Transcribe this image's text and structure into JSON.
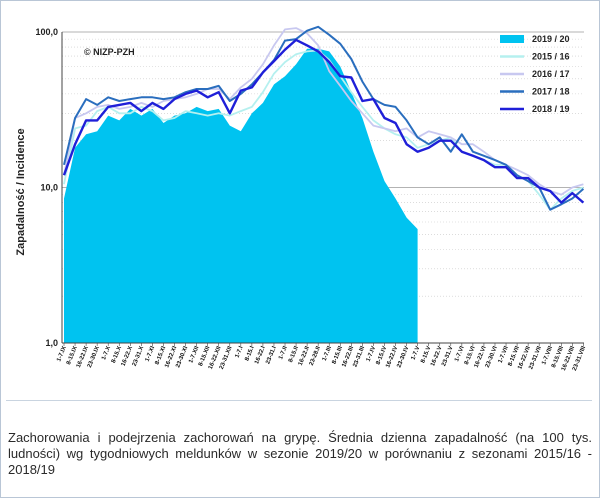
{
  "chart_data": {
    "type": "area",
    "y_scale": "log",
    "ylim": [
      1,
      100
    ],
    "yticks": [
      "1,0",
      "10,0",
      "100,0"
    ],
    "ylabel": "Zapadalność  /  Incidence",
    "copyright": "© NIZP-PZH",
    "categories": [
      "1-7.IX",
      "8-15.IX",
      "16-22.IX",
      "23-30.IX",
      "1-7.X",
      "8-15.X",
      "16-22.X",
      "23-31.X",
      "1-7.XI",
      "8-15.XI",
      "16-22.XI",
      "23-30.XI",
      "1-7.XII",
      "8-15.XII",
      "16-22.XII",
      "23-31.XII",
      "1-7.I",
      "8-15.I",
      "16-22.I",
      "23-31.I",
      "1-7.II",
      "8-15.II",
      "16-22.II",
      "23-28.II",
      "1-7.III",
      "8-15.III",
      "16-22.III",
      "23-31.III",
      "1-7.IV",
      "8-15.IV",
      "16-22.IV",
      "23-30.IV",
      "1-7.V",
      "8-15.V",
      "16-22.V",
      "23-31.V",
      "1-7.VI",
      "8-15.VI",
      "16-22.VI",
      "23-30.VI",
      "1-7.VII",
      "8-15.VII",
      "16-22.VII",
      "23-31.VII",
      "1-7.VIII",
      "8-15.VIII",
      "16-22.VIII",
      "23-31.VIII"
    ],
    "series": [
      {
        "name": "2019 / 20",
        "color": "#00c3f0",
        "style": "area",
        "values": [
          8.5,
          18,
          22,
          23,
          29,
          27,
          32,
          29,
          32,
          26,
          29,
          30,
          33,
          31,
          32,
          25,
          23,
          30,
          35,
          46,
          52,
          62,
          78,
          78,
          75,
          60,
          41,
          28,
          17,
          11,
          8.5,
          6.4,
          5.4,
          null,
          null,
          null,
          null,
          null,
          null,
          null,
          null,
          null,
          null,
          null,
          null,
          null,
          null,
          null
        ]
      },
      {
        "name": "2015 / 16",
        "color": "#b5f0ef",
        "style": "line",
        "values": [
          10.5,
          24,
          25,
          31,
          33,
          30,
          30,
          33,
          31,
          27,
          28,
          31,
          30,
          29,
          30,
          29,
          31,
          33,
          41,
          54,
          64,
          72,
          75,
          76,
          66,
          52,
          41,
          33,
          27,
          24,
          22,
          21,
          18,
          19,
          20,
          21,
          17,
          16,
          15,
          14,
          14,
          12,
          11,
          9,
          7.2,
          8.5,
          9.5,
          10
        ]
      },
      {
        "name": "2016 / 17",
        "color": "#c8c8f0",
        "style": "line",
        "values": [
          12,
          28,
          30,
          33,
          34,
          32,
          33,
          35,
          33,
          36,
          37,
          38,
          40,
          43,
          43,
          37,
          44,
          50,
          62,
          82,
          104,
          106,
          98,
          82,
          56,
          45,
          36,
          30,
          25,
          24,
          23,
          24,
          21,
          23,
          22,
          21,
          19,
          19,
          17,
          15,
          14,
          13,
          12,
          10.5,
          9.5,
          9,
          10,
          10.5
        ]
      },
      {
        "name": "2017 / 18",
        "color": "#2a6ebe",
        "style": "line",
        "values": [
          14,
          28,
          37,
          34,
          38,
          36,
          37,
          38,
          38,
          37,
          38,
          41,
          43,
          43,
          45,
          36,
          40,
          46,
          55,
          66,
          88,
          90,
          102,
          108,
          96,
          84,
          67,
          48,
          37,
          34,
          33,
          27,
          21,
          19,
          21,
          17,
          22,
          17,
          16,
          15,
          14,
          12,
          11,
          10,
          7.2,
          7.8,
          8.5,
          9.8
        ]
      },
      {
        "name": "2018 / 19",
        "color": "#1f1fd8",
        "style": "line",
        "values": [
          12,
          19,
          27,
          27,
          33,
          34,
          35,
          31,
          35,
          32,
          37,
          40,
          42,
          38,
          41,
          30,
          42,
          44,
          55,
          65,
          77,
          89,
          82,
          75,
          64,
          52,
          51,
          36,
          37,
          28,
          26,
          19,
          17,
          18,
          20,
          20,
          17,
          16,
          15,
          13.5,
          13.5,
          11.5,
          11.5,
          10,
          9.5,
          8,
          9.2,
          8
        ]
      }
    ]
  },
  "caption": "Zachorowania i podejrzenia zachorowań na grypę. Średnia dzienna zapadalność (na 100 tys. ludności) wg tygodniowych meldunków w sezonie 2019/20 w porównaniu z sezonami 2015/16 - 2018/19"
}
